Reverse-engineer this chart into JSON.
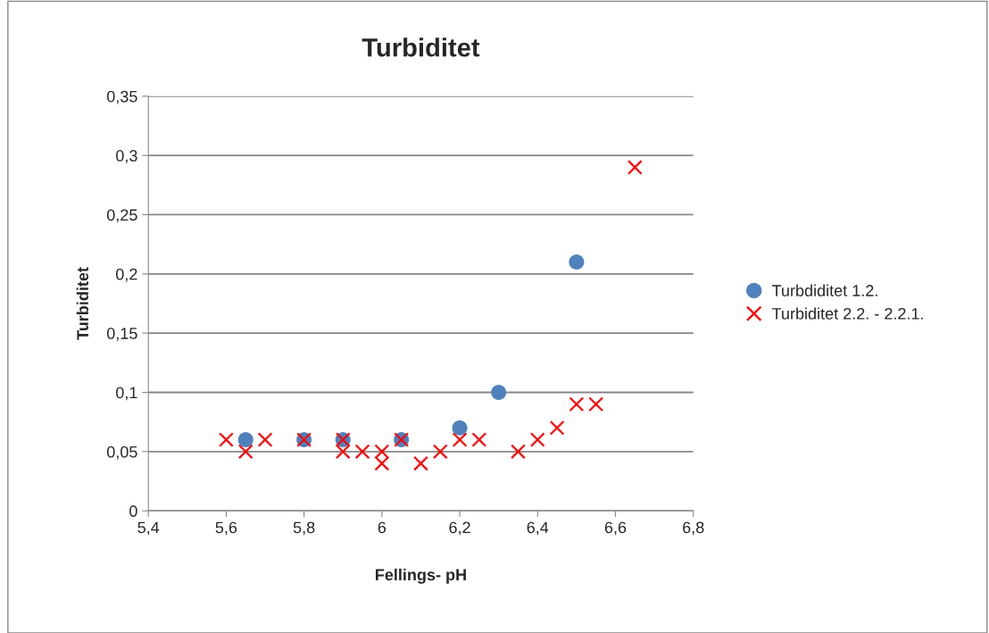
{
  "chart_data": {
    "type": "scatter",
    "title": "Turbiditet",
    "xlabel": "Fellings- pH",
    "ylabel": "Turbiditet",
    "xlim": [
      5.4,
      6.8
    ],
    "ylim": [
      0,
      0.35
    ],
    "xticks": [
      {
        "value": 5.4,
        "label": "5,4"
      },
      {
        "value": 5.6,
        "label": "5,6"
      },
      {
        "value": 5.8,
        "label": "5,8"
      },
      {
        "value": 6,
        "label": "6"
      },
      {
        "value": 6.2,
        "label": "6,2"
      },
      {
        "value": 6.4,
        "label": "6,4"
      },
      {
        "value": 6.6,
        "label": "6,6"
      },
      {
        "value": 6.8,
        "label": "6,8"
      }
    ],
    "yticks": [
      0,
      {
        "value": 0.05,
        "label": "0,05"
      },
      {
        "value": 0.1,
        "label": "0,1"
      },
      {
        "value": 0.15,
        "label": "0,15"
      },
      {
        "value": 0.2,
        "label": "0,2"
      },
      {
        "value": 0.25,
        "label": "0,25"
      },
      {
        "value": 0.3,
        "label": "0,3"
      },
      {
        "value": 0.35,
        "label": "0,35"
      }
    ],
    "grid": "y",
    "legend": "right",
    "series": [
      {
        "name": "Turbdiditet 1.2.",
        "color": "#4f81bd",
        "marker": "circle",
        "x": [
          5.65,
          5.8,
          5.9,
          6.05,
          6.2,
          6.3,
          6.5
        ],
        "values": [
          0.06,
          0.06,
          0.06,
          0.06,
          0.07,
          0.1,
          0.21
        ]
      },
      {
        "name": "Turbiditet 2.2. - 2.2.1.",
        "color": "#ff0000",
        "marker": "cross",
        "x": [
          5.6,
          5.65,
          5.7,
          5.8,
          5.9,
          5.9,
          5.95,
          6.0,
          6.0,
          6.05,
          6.1,
          6.15,
          6.2,
          6.25,
          6.35,
          6.4,
          6.45,
          6.5,
          6.55,
          6.65
        ],
        "values": [
          0.06,
          0.05,
          0.06,
          0.06,
          0.06,
          0.05,
          0.05,
          0.05,
          0.04,
          0.06,
          0.04,
          0.05,
          0.06,
          0.06,
          0.05,
          0.06,
          0.07,
          0.09,
          0.09,
          0.29
        ]
      }
    ]
  }
}
